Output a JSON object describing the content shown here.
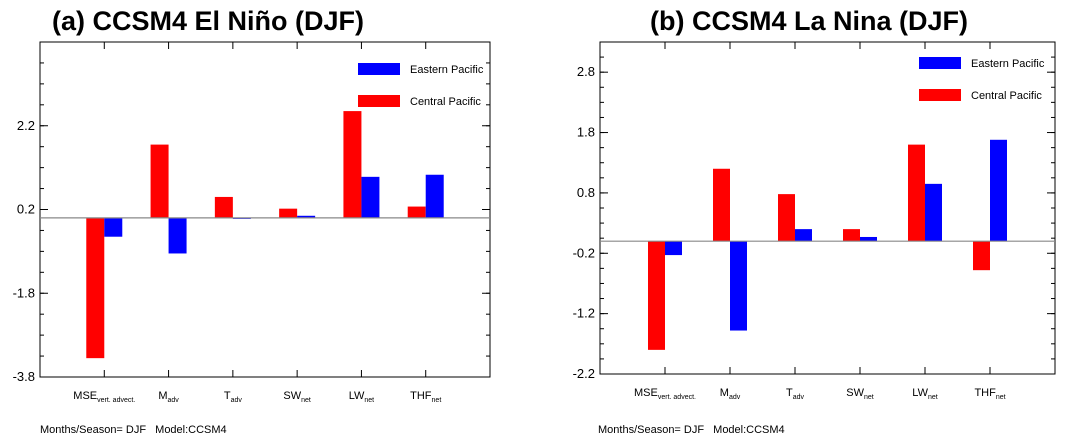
{
  "chart_data": [
    {
      "type": "bar",
      "title": "(a) CCSM4 El Niño (DJF)",
      "categories": [
        {
          "main": "MSE",
          "sub": "vert. advect."
        },
        {
          "main": "M",
          "sub": "adv"
        },
        {
          "main": "T",
          "sub": "adv"
        },
        {
          "main": "SW",
          "sub": "net"
        },
        {
          "main": "LW",
          "sub": "net"
        },
        {
          "main": "THF",
          "sub": "net"
        }
      ],
      "series": [
        {
          "name": "Central Pacific",
          "color": "#ff0000",
          "values": [
            -3.35,
            1.75,
            0.5,
            0.22,
            2.55,
            0.27
          ]
        },
        {
          "name": "Eastern Pacific",
          "color": "#0000ff",
          "values": [
            -0.45,
            -0.85,
            -0.02,
            0.05,
            0.98,
            1.03
          ]
        }
      ],
      "ylim": [
        -3.8,
        4.2
      ],
      "yticks": [
        -3.8,
        -1.8,
        0.2,
        2.2
      ],
      "baseline": 0,
      "legend_position": "top-right",
      "footer": {
        "season": "Months/Season= DJF",
        "model": "Model:CCSM4"
      }
    },
    {
      "type": "bar",
      "title": "(b) CCSM4 La Nina (DJF)",
      "categories": [
        {
          "main": "MSE",
          "sub": "vert. advect."
        },
        {
          "main": "M",
          "sub": "adv"
        },
        {
          "main": "T",
          "sub": "adv"
        },
        {
          "main": "SW",
          "sub": "net"
        },
        {
          "main": "LW",
          "sub": "net"
        },
        {
          "main": "THF",
          "sub": "net"
        }
      ],
      "series": [
        {
          "name": "Central Pacific",
          "color": "#ff0000",
          "values": [
            -1.8,
            1.2,
            0.78,
            0.2,
            1.6,
            -0.48
          ]
        },
        {
          "name": "Eastern Pacific",
          "color": "#0000ff",
          "values": [
            -0.23,
            -1.48,
            0.2,
            0.07,
            0.95,
            1.68
          ]
        }
      ],
      "ylim": [
        -2.2,
        3.3
      ],
      "yticks": [
        -2.2,
        -1.2,
        -0.2,
        0.8,
        1.8,
        2.8
      ],
      "baseline": 0,
      "legend_position": "top-right",
      "footer": {
        "season": "Months/Season= DJF",
        "model": "Model:CCSM4"
      }
    }
  ]
}
